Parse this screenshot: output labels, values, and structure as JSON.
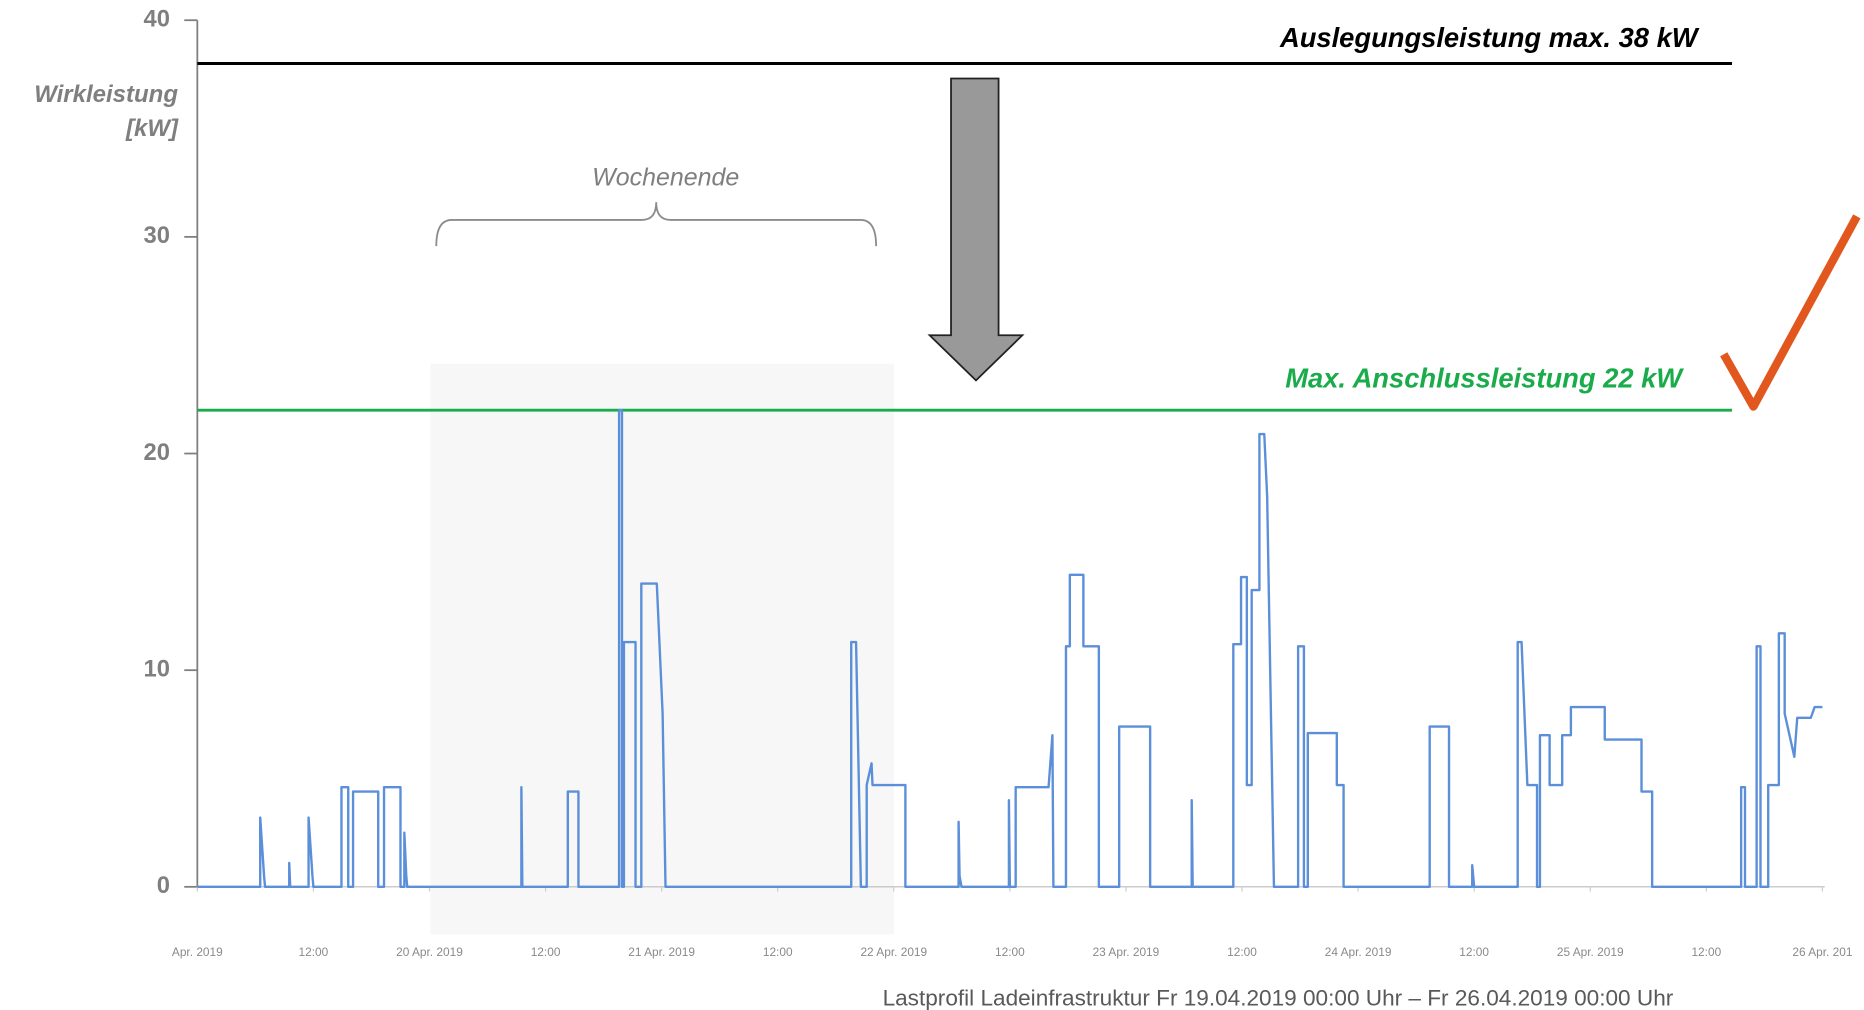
{
  "chart_data": {
    "type": "line",
    "y_label": "Wirkleistung [kW]",
    "caption": "Lastprofil Ladeinfrastruktur Fr 19.04.2019 00:00 Uhr – Fr 26.04.2019 00:00 Uhr",
    "xlim": [
      0,
      168
    ],
    "xticks": [
      {
        "value": 0,
        "label": "Apr. 2019"
      },
      {
        "value": 12,
        "label": "12:00"
      },
      {
        "value": 24,
        "label": "20 Apr. 2019"
      },
      {
        "value": 36,
        "label": "12:00"
      },
      {
        "value": 48,
        "label": "21 Apr. 2019"
      },
      {
        "value": 60,
        "label": "12:00"
      },
      {
        "value": 72,
        "label": "22 Apr. 2019"
      },
      {
        "value": 84,
        "label": "12:00"
      },
      {
        "value": 96,
        "label": "23 Apr. 2019"
      },
      {
        "value": 108,
        "label": "12:00"
      },
      {
        "value": 120,
        "label": "24 Apr. 2019"
      },
      {
        "value": 132,
        "label": "12:00"
      },
      {
        "value": 144,
        "label": "25 Apr. 2019"
      },
      {
        "value": 156,
        "label": "12:00"
      },
      {
        "value": 168,
        "label": "26 Apr. 201"
      }
    ],
    "ylim": [
      0,
      40
    ],
    "yticks": [
      0,
      10,
      20,
      30,
      40
    ],
    "reference_lines": [
      {
        "label": "Auslegungsleistung max. 38 kW",
        "value": 38,
        "color": "#000000"
      },
      {
        "label": "Max. Anschlussleistung 22 kW",
        "value": 22,
        "color": "#1aab4b"
      }
    ],
    "annotations": [
      {
        "label": "Wochenende",
        "x": [
          24,
          72
        ]
      }
    ],
    "series": [
      {
        "color": "#5b8fd9",
        "x": [
          0,
          6.5,
          6.5,
          6.9,
          7,
          9.5,
          9.5,
          9.6,
          11.5,
          11.5,
          11.9,
          12,
          14.9,
          14.9,
          15.6,
          15.6,
          16.1,
          16.1,
          18.7,
          18.7,
          19.3,
          19.3,
          21,
          21,
          21.4,
          21.4,
          21.6,
          21.7,
          33.5,
          33.5,
          33.6,
          38.3,
          38.3,
          39.4,
          39.4,
          43.6,
          43.6,
          43.9,
          43.9,
          44.1,
          44.1,
          45.3,
          45.3,
          45.9,
          45.9,
          47.5,
          48.1,
          48.4,
          67.6,
          67.6,
          68.1,
          68.6,
          69.2,
          69.2,
          69.7,
          69.8,
          73.2,
          73.2,
          78.7,
          78.7,
          78.8,
          79,
          83.9,
          83.9,
          84,
          84.6,
          84.6,
          88,
          88.4,
          88.5,
          89.8,
          89.8,
          90.2,
          90.2,
          91.6,
          91.6,
          93.2,
          93.2,
          95.3,
          95.3,
          98.5,
          98.5,
          102.8,
          102.8,
          102.9,
          107.1,
          107.1,
          107.9,
          107.9,
          108.5,
          108.5,
          109,
          109,
          109.8,
          109.8,
          110.3,
          110.6,
          111.3,
          113.8,
          113.8,
          114.4,
          114.4,
          114.8,
          114.8,
          117.8,
          117.8,
          118.5,
          118.5,
          127.4,
          127.4,
          129.4,
          129.4,
          131.8,
          131.8,
          132,
          136.5,
          136.5,
          136.9,
          137.5,
          138.5,
          138.5,
          138.8,
          138.8,
          139.8,
          139.8,
          141.1,
          141.1,
          142,
          142,
          145.5,
          145.5,
          149.3,
          149.3,
          150.4,
          150.4,
          159.6,
          159.6,
          160,
          160,
          161.2,
          161.2,
          161.6,
          161.6,
          162.4,
          162.4,
          163.5,
          163.5,
          164.1,
          164.1,
          165.1,
          165.4,
          166.8,
          167.2,
          168
        ],
        "values": [
          0,
          0,
          3.2,
          0.5,
          0,
          0,
          1.1,
          0,
          0,
          3.2,
          0.5,
          0,
          0,
          4.6,
          4.6,
          0,
          0,
          4.4,
          4.4,
          0,
          0,
          4.6,
          4.6,
          0,
          0,
          2.5,
          0.5,
          0,
          0,
          4.6,
          0,
          0,
          4.4,
          4.4,
          0,
          0,
          22,
          22,
          0,
          0,
          11.3,
          11.3,
          0,
          0,
          14,
          14,
          8,
          0,
          0,
          11.3,
          11.3,
          0,
          0,
          4.7,
          5.7,
          4.7,
          4.7,
          0,
          0,
          3,
          0.5,
          0,
          0,
          4,
          0,
          0,
          4.6,
          4.6,
          7,
          0,
          0,
          11.1,
          11.1,
          14.4,
          14.4,
          11.1,
          11.1,
          0,
          0,
          7.4,
          7.4,
          0,
          0,
          4,
          0,
          0,
          11.2,
          11.2,
          14.3,
          14.3,
          4.7,
          4.7,
          13.7,
          13.7,
          20.9,
          20.9,
          18,
          0,
          0,
          11.1,
          11.1,
          0,
          0,
          7.1,
          7.1,
          4.7,
          4.7,
          0,
          0,
          7.4,
          7.4,
          0,
          0,
          1,
          0,
          0,
          11.3,
          11.3,
          4.7,
          4.7,
          0,
          0,
          7,
          7,
          4.7,
          4.7,
          7,
          7,
          8.3,
          8.3,
          6.8,
          6.8,
          4.4,
          4.4,
          0,
          0,
          4.6,
          4.6,
          0,
          0,
          11.1,
          11.1,
          0,
          0,
          4.7,
          4.7,
          11.7,
          11.7,
          8,
          6,
          7.8,
          7.8,
          8.3,
          8.3
        ]
      }
    ]
  }
}
